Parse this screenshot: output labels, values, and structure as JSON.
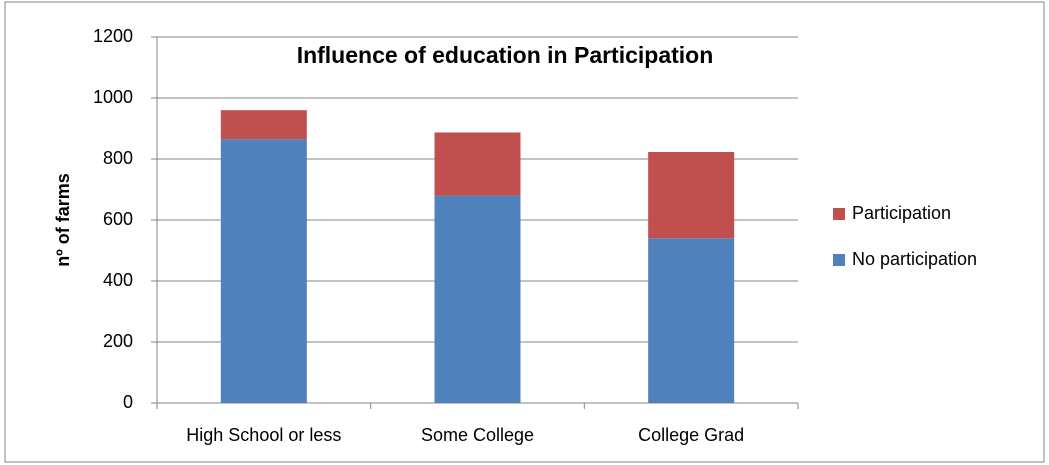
{
  "chart_data": {
    "type": "stacked-bar",
    "title": "Influence of education in Participation",
    "y_label": "nº of farms",
    "categories": [
      "High School or less",
      "Some College",
      "College Grad"
    ],
    "series": [
      {
        "name": "No participation",
        "color": "#4f81bd",
        "values": [
          865,
          680,
          540
        ]
      },
      {
        "name": "Participation",
        "color": "#c0504d",
        "values": [
          95,
          207,
          283
        ]
      }
    ],
    "ylim": [
      0,
      1200
    ],
    "yticks": [
      0,
      200,
      400,
      600,
      800,
      1000,
      1200
    ],
    "grid": true,
    "legend": "right"
  }
}
